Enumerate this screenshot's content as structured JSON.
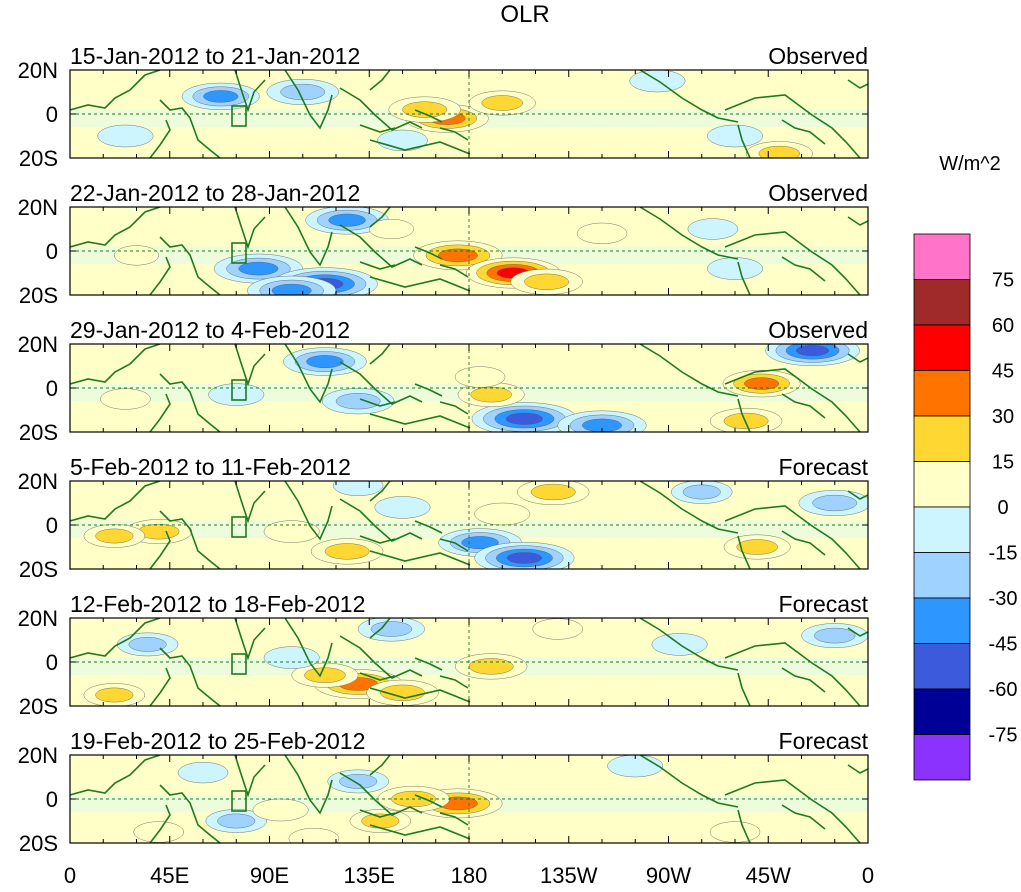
{
  "chart_data": {
    "type": "heatmap",
    "title": "OLR",
    "units_label": "W/m^2",
    "x_ticks": [
      "0",
      "45E",
      "90E",
      "135E",
      "180",
      "135W",
      "90W",
      "45W",
      "0"
    ],
    "y_ticks": [
      "20N",
      "0",
      "20S"
    ],
    "x_range_deg": [
      0,
      360
    ],
    "y_range_deg": [
      -20,
      20
    ],
    "panels": [
      {
        "period": "15-Jan-2012 to 21-Jan-2012",
        "status": "Observed",
        "anomalies": [
          [
            105,
            10,
            -40
          ],
          [
            68,
            8,
            -45
          ],
          [
            170,
            -2,
            50
          ],
          [
            160,
            2,
            40
          ],
          [
            195,
            5,
            35
          ],
          [
            300,
            -10,
            -25
          ],
          [
            265,
            15,
            -25
          ],
          [
            320,
            -18,
            35
          ],
          [
            150,
            -12,
            -20
          ],
          [
            25,
            -10,
            -25
          ]
        ]
      },
      {
        "period": "22-Jan-2012 to 28-Jan-2012",
        "status": "Observed",
        "anomalies": [
          [
            85,
            -8,
            -55
          ],
          [
            115,
            -15,
            -70
          ],
          [
            100,
            -18,
            -55
          ],
          [
            175,
            -2,
            55
          ],
          [
            200,
            -10,
            60
          ],
          [
            215,
            -14,
            40
          ],
          [
            125,
            14,
            -50
          ],
          [
            145,
            10,
            15
          ],
          [
            300,
            -8,
            -25
          ],
          [
            290,
            10,
            -20
          ],
          [
            240,
            8,
            20
          ],
          [
            30,
            -2,
            15
          ]
        ]
      },
      {
        "period": "29-Jan-2012 to 4-Feb-2012",
        "status": "Observed",
        "anomalies": [
          [
            205,
            -14,
            -70
          ],
          [
            240,
            -17,
            -55
          ],
          [
            115,
            12,
            -50
          ],
          [
            130,
            -6,
            -40
          ],
          [
            190,
            -3,
            35
          ],
          [
            185,
            5,
            20
          ],
          [
            335,
            17,
            -60
          ],
          [
            312,
            2,
            45
          ],
          [
            305,
            -15,
            40
          ],
          [
            25,
            -5,
            20
          ],
          [
            75,
            -3,
            -25
          ]
        ]
      },
      {
        "period": "5-Feb-2012 to 11-Feb-2012",
        "status": "Forecast",
        "anomalies": [
          [
            185,
            -8,
            -50
          ],
          [
            205,
            -15,
            -65
          ],
          [
            218,
            15,
            40
          ],
          [
            195,
            5,
            25
          ],
          [
            125,
            -12,
            40
          ],
          [
            40,
            -3,
            35
          ],
          [
            20,
            -5,
            30
          ],
          [
            100,
            -3,
            25
          ],
          [
            310,
            -10,
            35
          ],
          [
            285,
            15,
            -30
          ],
          [
            345,
            10,
            -40
          ],
          [
            150,
            8,
            -25
          ],
          [
            130,
            18,
            -20
          ]
        ]
      },
      {
        "period": "12-Feb-2012 to 18-Feb-2012",
        "status": "Forecast",
        "anomalies": [
          [
            130,
            -10,
            55
          ],
          [
            115,
            -6,
            35
          ],
          [
            150,
            -14,
            40
          ],
          [
            190,
            -2,
            40
          ],
          [
            145,
            15,
            -35
          ],
          [
            35,
            8,
            -30
          ],
          [
            100,
            2,
            -25
          ],
          [
            275,
            8,
            -25
          ],
          [
            345,
            12,
            -35
          ],
          [
            20,
            -15,
            30
          ],
          [
            220,
            15,
            20
          ]
        ]
      },
      {
        "period": "19-Feb-2012 to 25-Feb-2012",
        "status": "Forecast",
        "anomalies": [
          [
            175,
            -2,
            55
          ],
          [
            155,
            0,
            40
          ],
          [
            140,
            -10,
            30
          ],
          [
            130,
            8,
            -30
          ],
          [
            75,
            -10,
            -30
          ],
          [
            60,
            12,
            -20
          ],
          [
            255,
            15,
            -25
          ],
          [
            300,
            -15,
            20
          ],
          [
            95,
            -5,
            25
          ],
          [
            40,
            -15,
            20
          ],
          [
            110,
            -18,
            20
          ]
        ]
      }
    ],
    "legend": {
      "labels": [
        "75",
        "60",
        "45",
        "30",
        "15",
        "0",
        "-15",
        "-30",
        "-45",
        "-60",
        "-75"
      ],
      "colors": [
        "#ff73c8",
        "#a02a2a",
        "#ff0000",
        "#ff7300",
        "#ffd732",
        "#ffffc8",
        "#ccf5ff",
        "#a0d2ff",
        "#2d96ff",
        "#3c5adc",
        "#000096",
        "#8c32ff"
      ]
    }
  }
}
